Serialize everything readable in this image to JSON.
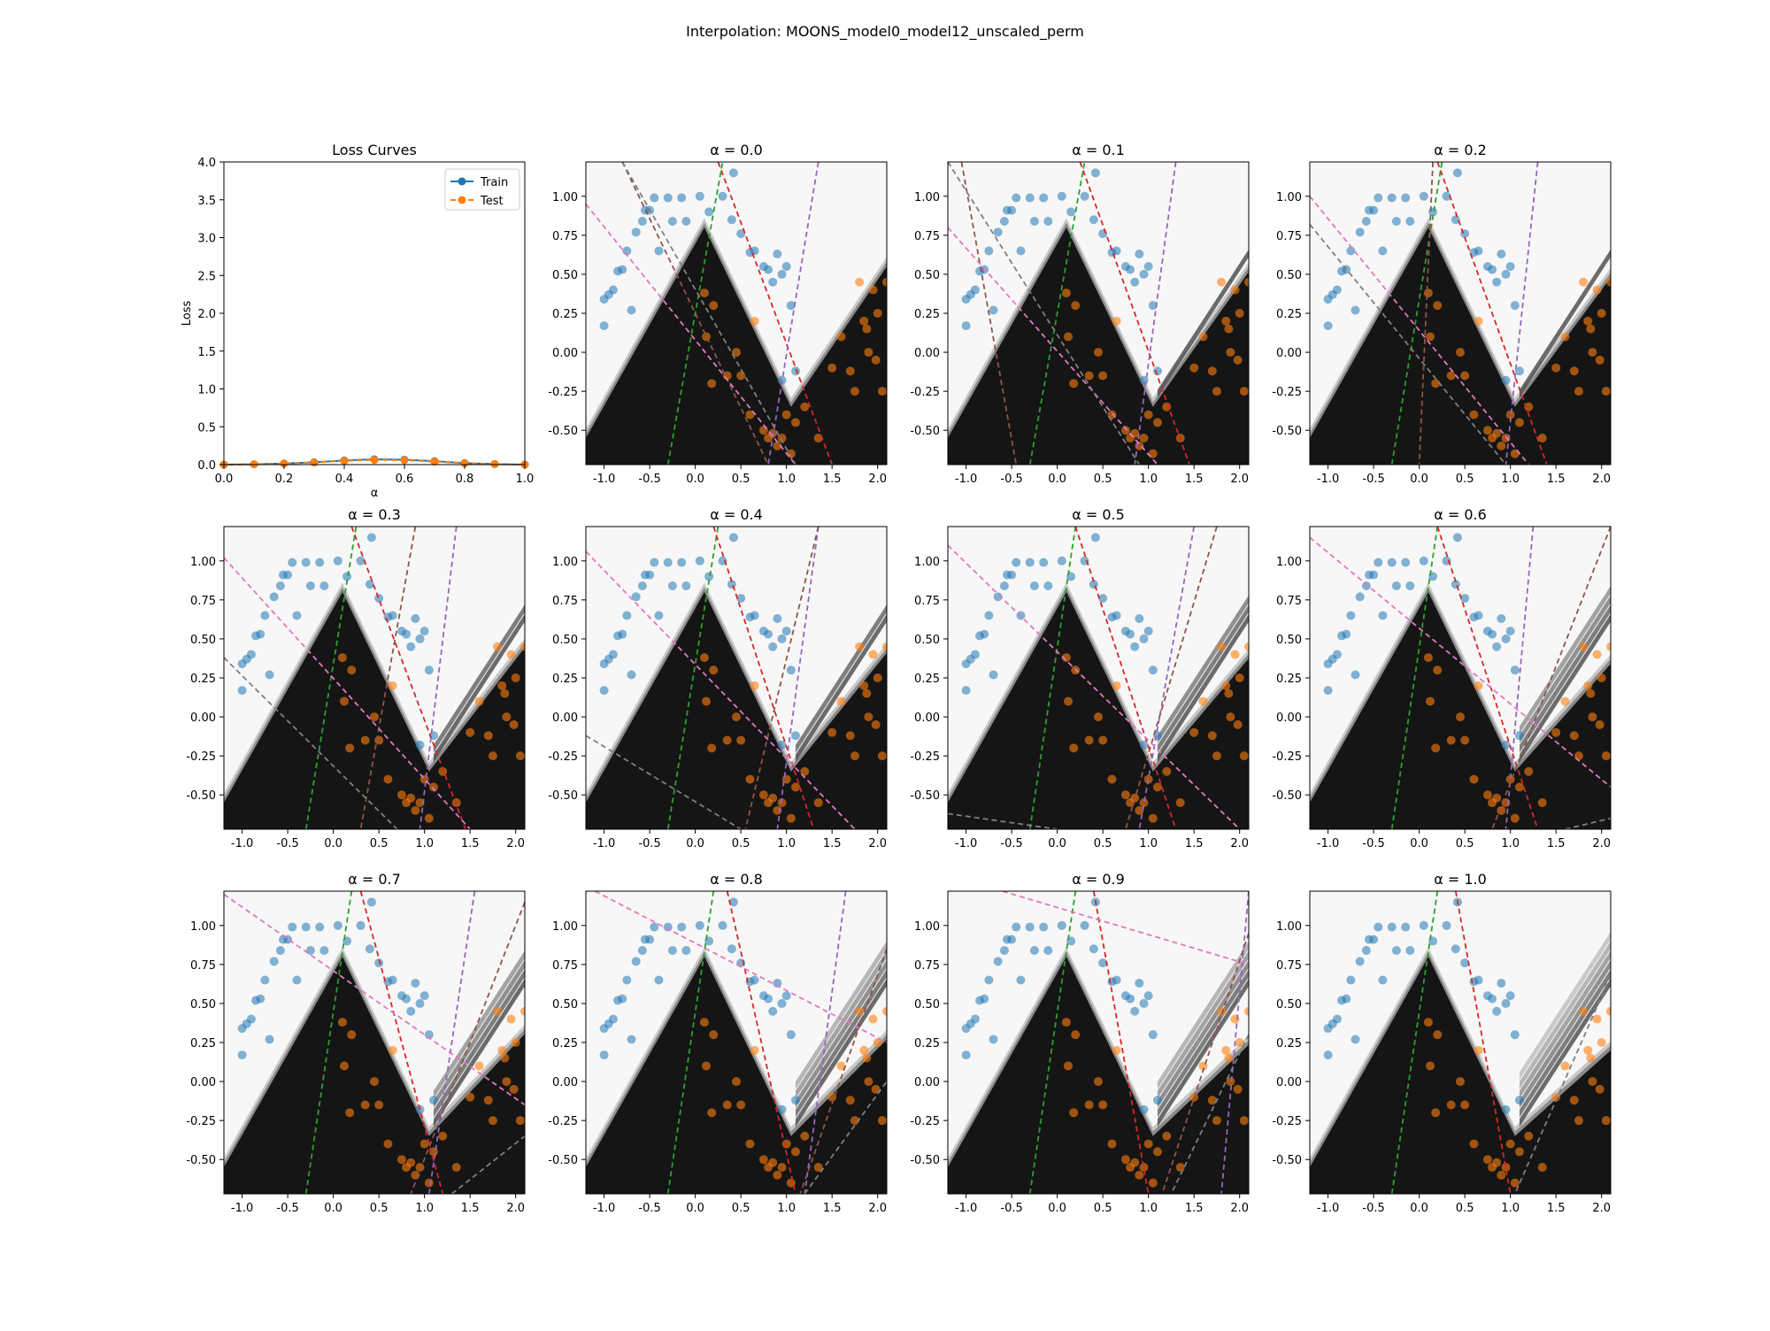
{
  "figure": {
    "suptitle": "Interpolation: MOONS_model0_model12_unscaled_perm"
  },
  "colors": {
    "train": "#1f77b4",
    "test": "#ff7f0e",
    "class0_points": "#1f77b4",
    "class1_points": "#ff7f0e",
    "region_dark": "#151515",
    "region_light": "#f7f7f7",
    "boundary_lines": [
      "#2ca02c",
      "#d62728",
      "#9467bd",
      "#8c564b",
      "#e377c2",
      "#7f7f7f"
    ]
  },
  "chart_data": [
    {
      "type": "line",
      "title": "Loss Curves",
      "xlabel": "α",
      "ylabel": "Loss",
      "xlim": [
        0.0,
        1.0
      ],
      "ylim": [
        0.0,
        4.0
      ],
      "xticks": [
        "0.0",
        "0.2",
        "0.4",
        "0.6",
        "0.8",
        "1.0"
      ],
      "yticks": [
        "0.0",
        "0.5",
        "1.0",
        "1.5",
        "2.0",
        "2.5",
        "3.0",
        "3.5",
        "4.0"
      ],
      "legend": "top-right",
      "x": [
        0.0,
        0.1,
        0.2,
        0.3,
        0.4,
        0.5,
        0.6,
        0.7,
        0.8,
        0.9,
        1.0
      ],
      "series": [
        {
          "name": "Train",
          "style": "solid",
          "values": [
            0.0,
            0.005,
            0.015,
            0.03,
            0.055,
            0.07,
            0.065,
            0.045,
            0.02,
            0.008,
            0.0
          ]
        },
        {
          "name": "Test",
          "style": "dashed",
          "values": [
            0.0,
            0.005,
            0.012,
            0.028,
            0.05,
            0.062,
            0.058,
            0.04,
            0.018,
            0.006,
            0.0
          ]
        }
      ]
    },
    {
      "type": "scatter",
      "subtype": "decision-boundary",
      "xlim": [
        -1.2,
        2.1
      ],
      "ylim": [
        -0.72,
        1.22
      ],
      "xticks": [
        "-1.0",
        "-0.5",
        "0.0",
        "0.5",
        "1.0",
        "1.5",
        "2.0"
      ],
      "yticks": [
        "-0.50",
        "-0.25",
        "0.00",
        "0.25",
        "0.50",
        "0.75",
        "1.00"
      ],
      "class0_points": [
        [
          -1.0,
          0.17
        ],
        [
          -1.0,
          0.34
        ],
        [
          -0.95,
          0.37
        ],
        [
          -0.9,
          0.4
        ],
        [
          -0.85,
          0.52
        ],
        [
          -0.8,
          0.53
        ],
        [
          -0.75,
          0.65
        ],
        [
          -0.7,
          0.27
        ],
        [
          -0.65,
          0.77
        ],
        [
          -0.58,
          0.84
        ],
        [
          -0.55,
          0.91
        ],
        [
          -0.5,
          0.91
        ],
        [
          -0.45,
          0.99
        ],
        [
          -0.4,
          0.65
        ],
        [
          -0.3,
          0.99
        ],
        [
          -0.25,
          0.84
        ],
        [
          -0.15,
          0.99
        ],
        [
          -0.1,
          0.84
        ],
        [
          0.05,
          1.0
        ],
        [
          0.15,
          0.9
        ],
        [
          0.3,
          1.0
        ],
        [
          0.4,
          0.85
        ],
        [
          0.42,
          1.15
        ],
        [
          0.5,
          0.76
        ],
        [
          0.6,
          0.64
        ],
        [
          0.65,
          0.65
        ],
        [
          0.75,
          0.55
        ],
        [
          0.8,
          0.53
        ],
        [
          0.85,
          0.45
        ],
        [
          0.9,
          0.63
        ],
        [
          0.95,
          0.5
        ],
        [
          1.0,
          0.55
        ],
        [
          1.05,
          0.3
        ],
        [
          1.1,
          -0.12
        ],
        [
          0.95,
          -0.18
        ]
      ],
      "class1_points": [
        [
          0.1,
          0.38
        ],
        [
          0.12,
          0.1
        ],
        [
          0.18,
          -0.2
        ],
        [
          0.2,
          0.3
        ],
        [
          0.35,
          -0.15
        ],
        [
          0.5,
          -0.15
        ],
        [
          0.45,
          0.0
        ],
        [
          0.6,
          -0.4
        ],
        [
          0.65,
          0.2
        ],
        [
          0.75,
          -0.5
        ],
        [
          0.8,
          -0.55
        ],
        [
          0.85,
          -0.52
        ],
        [
          0.9,
          -0.6
        ],
        [
          0.95,
          -0.55
        ],
        [
          1.0,
          -0.4
        ],
        [
          1.05,
          -0.65
        ],
        [
          1.1,
          -0.45
        ],
        [
          1.2,
          -0.35
        ],
        [
          1.35,
          -0.55
        ],
        [
          1.5,
          -0.1
        ],
        [
          1.6,
          0.1
        ],
        [
          1.7,
          -0.12
        ],
        [
          1.8,
          0.45
        ],
        [
          1.85,
          0.2
        ],
        [
          1.88,
          0.15
        ],
        [
          1.9,
          0.0
        ],
        [
          1.95,
          0.4
        ],
        [
          1.98,
          -0.05
        ],
        [
          2.0,
          0.25
        ],
        [
          2.05,
          -0.25
        ],
        [
          2.1,
          0.45
        ],
        [
          1.75,
          -0.25
        ]
      ]
    }
  ],
  "panels": [
    {
      "title": "α = 0.0",
      "alpha": 0.0,
      "lines": [
        {
          "color": "#2ca02c",
          "p1": [
            -0.3,
            -0.72
          ],
          "p2": [
            0.3,
            1.22
          ]
        },
        {
          "color": "#d62728",
          "p1": [
            0.25,
            1.22
          ],
          "p2": [
            1.5,
            -0.72
          ]
        },
        {
          "color": "#9467bd",
          "p1": [
            1.35,
            1.22
          ],
          "p2": [
            0.8,
            -0.72
          ]
        },
        {
          "color": "#8c564b",
          "p1": [
            -0.8,
            1.22
          ],
          "p2": [
            0.8,
            -0.72
          ]
        },
        {
          "color": "#e377c2",
          "p1": [
            -1.2,
            0.95
          ],
          "p2": [
            1.1,
            -0.72
          ]
        },
        {
          "color": "#7f7f7f",
          "p1": [
            -0.8,
            1.22
          ],
          "p2": [
            1.1,
            -0.72
          ]
        }
      ]
    },
    {
      "title": "α = 0.1",
      "alpha": 0.1,
      "lines": [
        {
          "color": "#2ca02c",
          "p1": [
            -0.3,
            -0.72
          ],
          "p2": [
            0.3,
            1.22
          ]
        },
        {
          "color": "#d62728",
          "p1": [
            0.25,
            1.22
          ],
          "p2": [
            1.45,
            -0.72
          ]
        },
        {
          "color": "#9467bd",
          "p1": [
            1.3,
            1.22
          ],
          "p2": [
            0.85,
            -0.72
          ]
        },
        {
          "color": "#8c564b",
          "p1": [
            -1.05,
            1.22
          ],
          "p2": [
            -0.45,
            -0.72
          ]
        },
        {
          "color": "#e377c2",
          "p1": [
            -1.2,
            0.8
          ],
          "p2": [
            1.1,
            -0.72
          ]
        },
        {
          "color": "#7f7f7f",
          "p1": [
            -1.2,
            1.22
          ],
          "p2": [
            0.9,
            -0.72
          ]
        }
      ]
    },
    {
      "title": "α = 0.2",
      "alpha": 0.2,
      "lines": [
        {
          "color": "#2ca02c",
          "p1": [
            -0.3,
            -0.72
          ],
          "p2": [
            0.25,
            1.22
          ]
        },
        {
          "color": "#d62728",
          "p1": [
            0.2,
            1.22
          ],
          "p2": [
            1.4,
            -0.72
          ]
        },
        {
          "color": "#9467bd",
          "p1": [
            1.3,
            1.22
          ],
          "p2": [
            0.95,
            -0.72
          ]
        },
        {
          "color": "#8c564b",
          "p1": [
            0.15,
            1.22
          ],
          "p2": [
            0.0,
            -0.72
          ]
        },
        {
          "color": "#e377c2",
          "p1": [
            -1.2,
            1.0
          ],
          "p2": [
            1.2,
            -0.72
          ]
        },
        {
          "color": "#7f7f7f",
          "p1": [
            -1.2,
            0.82
          ],
          "p2": [
            0.95,
            -0.72
          ]
        }
      ]
    },
    {
      "title": "α = 0.3",
      "alpha": 0.3,
      "lines": [
        {
          "color": "#2ca02c",
          "p1": [
            -0.3,
            -0.72
          ],
          "p2": [
            0.25,
            1.22
          ]
        },
        {
          "color": "#d62728",
          "p1": [
            0.2,
            1.22
          ],
          "p2": [
            1.45,
            -0.72
          ]
        },
        {
          "color": "#9467bd",
          "p1": [
            1.35,
            1.22
          ],
          "p2": [
            0.95,
            -0.72
          ]
        },
        {
          "color": "#8c564b",
          "p1": [
            0.9,
            1.22
          ],
          "p2": [
            0.3,
            -0.72
          ]
        },
        {
          "color": "#e377c2",
          "p1": [
            -1.2,
            1.02
          ],
          "p2": [
            1.5,
            -0.72
          ]
        },
        {
          "color": "#7f7f7f",
          "p1": [
            -1.2,
            0.38
          ],
          "p2": [
            0.7,
            -0.72
          ]
        }
      ]
    },
    {
      "title": "α = 0.4",
      "alpha": 0.4,
      "lines": [
        {
          "color": "#2ca02c",
          "p1": [
            -0.3,
            -0.72
          ],
          "p2": [
            0.25,
            1.22
          ]
        },
        {
          "color": "#d62728",
          "p1": [
            0.2,
            1.22
          ],
          "p2": [
            1.3,
            -0.72
          ]
        },
        {
          "color": "#9467bd",
          "p1": [
            1.35,
            1.22
          ],
          "p2": [
            0.9,
            -0.72
          ]
        },
        {
          "color": "#8c564b",
          "p1": [
            1.35,
            1.22
          ],
          "p2": [
            0.55,
            -0.72
          ]
        },
        {
          "color": "#e377c2",
          "p1": [
            -1.2,
            1.06
          ],
          "p2": [
            1.75,
            -0.72
          ]
        },
        {
          "color": "#7f7f7f",
          "p1": [
            -1.2,
            -0.12
          ],
          "p2": [
            0.5,
            -0.72
          ]
        }
      ]
    },
    {
      "title": "α = 0.5",
      "alpha": 0.5,
      "lines": [
        {
          "color": "#2ca02c",
          "p1": [
            -0.3,
            -0.72
          ],
          "p2": [
            0.2,
            1.22
          ]
        },
        {
          "color": "#d62728",
          "p1": [
            0.2,
            1.22
          ],
          "p2": [
            1.3,
            -0.72
          ]
        },
        {
          "color": "#9467bd",
          "p1": [
            1.5,
            1.22
          ],
          "p2": [
            0.9,
            -0.72
          ]
        },
        {
          "color": "#8c564b",
          "p1": [
            1.75,
            1.22
          ],
          "p2": [
            0.75,
            -0.72
          ]
        },
        {
          "color": "#e377c2",
          "p1": [
            -1.2,
            1.1
          ],
          "p2": [
            2.0,
            -0.72
          ]
        },
        {
          "color": "#7f7f7f",
          "p1": [
            -1.2,
            -0.62
          ],
          "p2": [
            0.0,
            -0.72
          ]
        }
      ]
    },
    {
      "title": "α = 0.6",
      "alpha": 0.6,
      "lines": [
        {
          "color": "#2ca02c",
          "p1": [
            -0.3,
            -0.72
          ],
          "p2": [
            0.2,
            1.22
          ]
        },
        {
          "color": "#d62728",
          "p1": [
            0.2,
            1.22
          ],
          "p2": [
            1.3,
            -0.72
          ]
        },
        {
          "color": "#9467bd",
          "p1": [
            1.25,
            1.22
          ],
          "p2": [
            0.95,
            -0.72
          ]
        },
        {
          "color": "#8c564b",
          "p1": [
            2.1,
            1.22
          ],
          "p2": [
            0.8,
            -0.72
          ]
        },
        {
          "color": "#e377c2",
          "p1": [
            -1.2,
            1.15
          ],
          "p2": [
            2.1,
            -0.45
          ]
        },
        {
          "color": "#7f7f7f",
          "p1": [
            1.6,
            -0.72
          ],
          "p2": [
            2.1,
            -0.65
          ]
        }
      ]
    },
    {
      "title": "α = 0.7",
      "alpha": 0.7,
      "lines": [
        {
          "color": "#2ca02c",
          "p1": [
            -0.3,
            -0.72
          ],
          "p2": [
            0.2,
            1.22
          ]
        },
        {
          "color": "#d62728",
          "p1": [
            0.3,
            1.22
          ],
          "p2": [
            1.2,
            -0.72
          ]
        },
        {
          "color": "#9467bd",
          "p1": [
            1.55,
            1.22
          ],
          "p2": [
            1.05,
            -0.72
          ]
        },
        {
          "color": "#8c564b",
          "p1": [
            2.1,
            1.15
          ],
          "p2": [
            0.85,
            -0.72
          ]
        },
        {
          "color": "#e377c2",
          "p1": [
            -1.2,
            1.2
          ],
          "p2": [
            2.1,
            -0.15
          ]
        },
        {
          "color": "#7f7f7f",
          "p1": [
            1.3,
            -0.72
          ],
          "p2": [
            2.1,
            -0.35
          ]
        }
      ]
    },
    {
      "title": "α = 0.8",
      "alpha": 0.8,
      "lines": [
        {
          "color": "#2ca02c",
          "p1": [
            -0.3,
            -0.72
          ],
          "p2": [
            0.2,
            1.22
          ]
        },
        {
          "color": "#d62728",
          "p1": [
            0.35,
            1.22
          ],
          "p2": [
            1.1,
            -0.72
          ]
        },
        {
          "color": "#9467bd",
          "p1": [
            1.65,
            1.22
          ],
          "p2": [
            1.2,
            -0.72
          ]
        },
        {
          "color": "#8c564b",
          "p1": [
            2.1,
            0.85
          ],
          "p2": [
            1.15,
            -0.72
          ]
        },
        {
          "color": "#e377c2",
          "p1": [
            -1.1,
            1.22
          ],
          "p2": [
            2.1,
            0.25
          ]
        },
        {
          "color": "#7f7f7f",
          "p1": [
            1.2,
            -0.72
          ],
          "p2": [
            2.1,
            0.0
          ]
        }
      ]
    },
    {
      "title": "α = 0.9",
      "alpha": 0.9,
      "lines": [
        {
          "color": "#2ca02c",
          "p1": [
            -0.3,
            -0.72
          ],
          "p2": [
            0.2,
            1.22
          ]
        },
        {
          "color": "#d62728",
          "p1": [
            0.4,
            1.22
          ],
          "p2": [
            1.0,
            -0.72
          ]
        },
        {
          "color": "#9467bd",
          "p1": [
            2.1,
            1.22
          ],
          "p2": [
            1.8,
            -0.72
          ]
        },
        {
          "color": "#8c564b",
          "p1": [
            2.1,
            0.95
          ],
          "p2": [
            1.15,
            -0.72
          ]
        },
        {
          "color": "#e377c2",
          "p1": [
            -0.6,
            1.22
          ],
          "p2": [
            2.1,
            0.75
          ]
        },
        {
          "color": "#7f7f7f",
          "p1": [
            2.1,
            0.3
          ],
          "p2": [
            1.25,
            -0.72
          ]
        }
      ]
    },
    {
      "title": "α = 1.0",
      "alpha": 1.0,
      "lines": [
        {
          "color": "#2ca02c",
          "p1": [
            -0.3,
            -0.72
          ],
          "p2": [
            0.2,
            1.22
          ]
        },
        {
          "color": "#d62728",
          "p1": [
            0.4,
            1.22
          ],
          "p2": [
            1.0,
            -0.72
          ]
        },
        {
          "color": "#7f7f7f",
          "p1": [
            2.1,
            0.68
          ],
          "p2": [
            1.05,
            -0.72
          ]
        }
      ]
    }
  ]
}
